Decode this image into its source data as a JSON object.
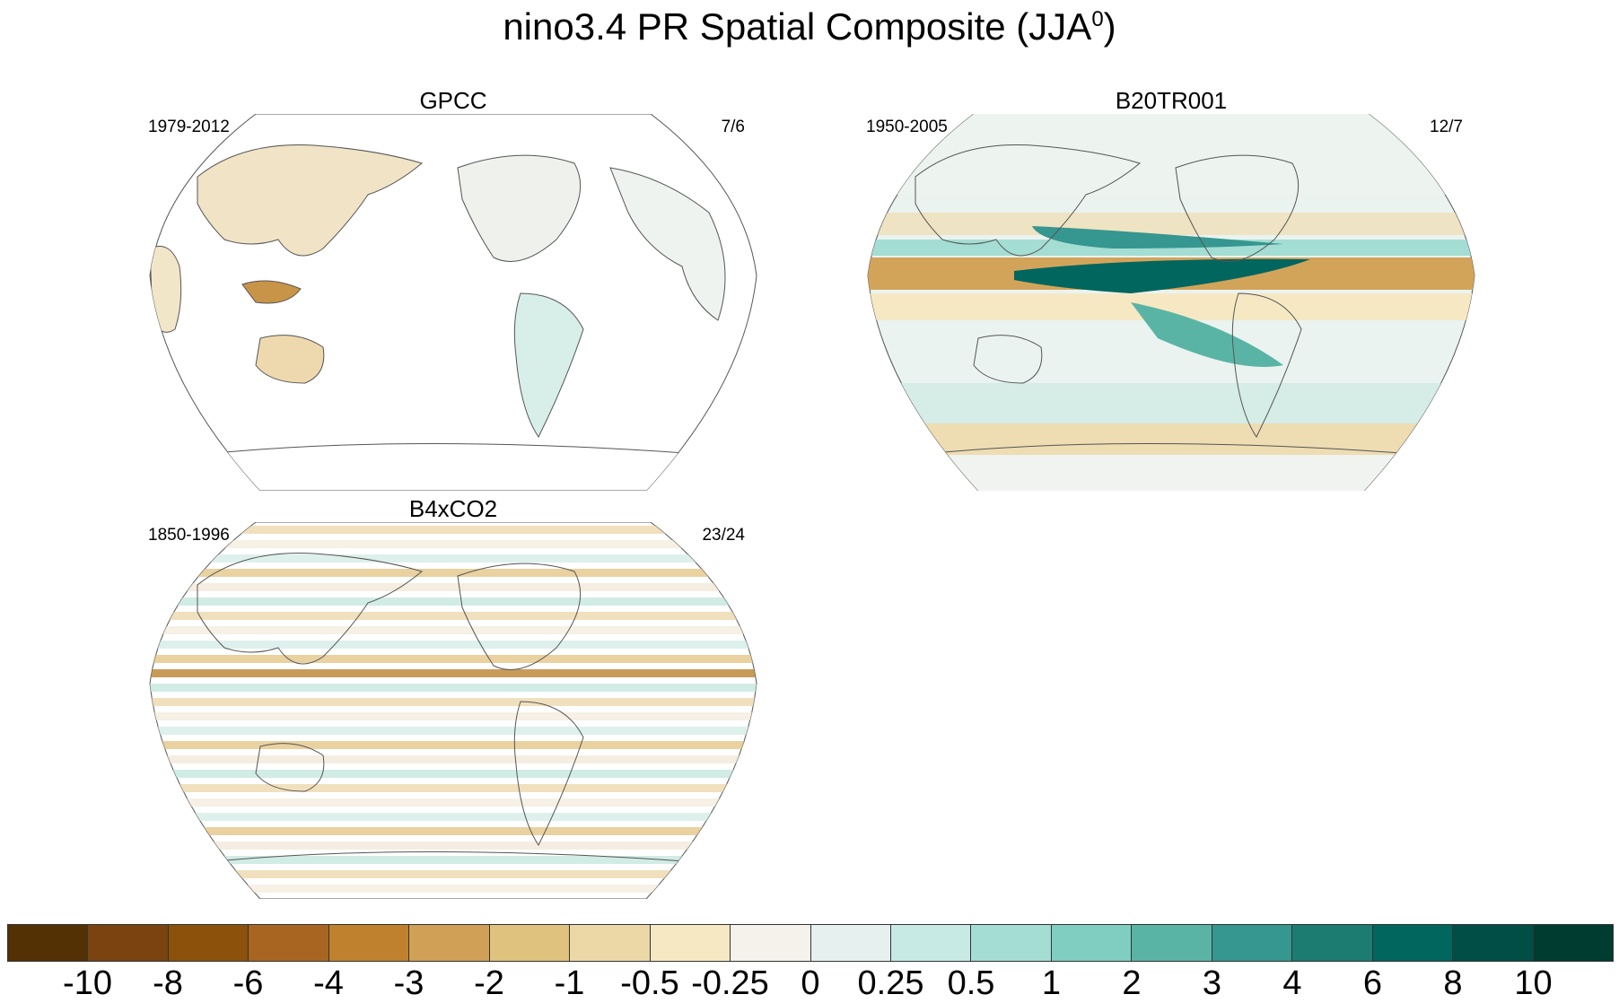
{
  "title": "nino3.4 PR Spatial Composite (JJA",
  "title_superscript": "0",
  "title_close": ")",
  "panels": [
    {
      "name": "GPCC",
      "period": "1979-2012",
      "ratio": "7/6",
      "coverage": "land-only"
    },
    {
      "name": "B20TR001",
      "period": "1950-2005",
      "ratio": "12/7",
      "coverage": "global"
    },
    {
      "name": "B4xCO2",
      "period": "1850-1996",
      "ratio": "23/24",
      "coverage": "global-banded"
    }
  ],
  "colorbar": {
    "colors": [
      "#543005",
      "#7a430f",
      "#8c510a",
      "#a86522",
      "#bf812d",
      "#cfa055",
      "#dfc27d",
      "#ecd8a7",
      "#f6e8c3",
      "#f5f1eb",
      "#e6f1ef",
      "#c7eae5",
      "#a4ddd3",
      "#80cdc1",
      "#5ab4a5",
      "#35978f",
      "#1c7c72",
      "#01665e",
      "#014e46",
      "#003c30"
    ],
    "labels": [
      "-10",
      "-8",
      "-6",
      "-4",
      "-3",
      "-2",
      "-1",
      "-0.5",
      "-0.25",
      "0",
      "0.25",
      "0.5",
      "1",
      "2",
      "3",
      "4",
      "6",
      "8",
      "10"
    ]
  },
  "icons": {
    "map-projection": "robinson-world-map-icon"
  }
}
